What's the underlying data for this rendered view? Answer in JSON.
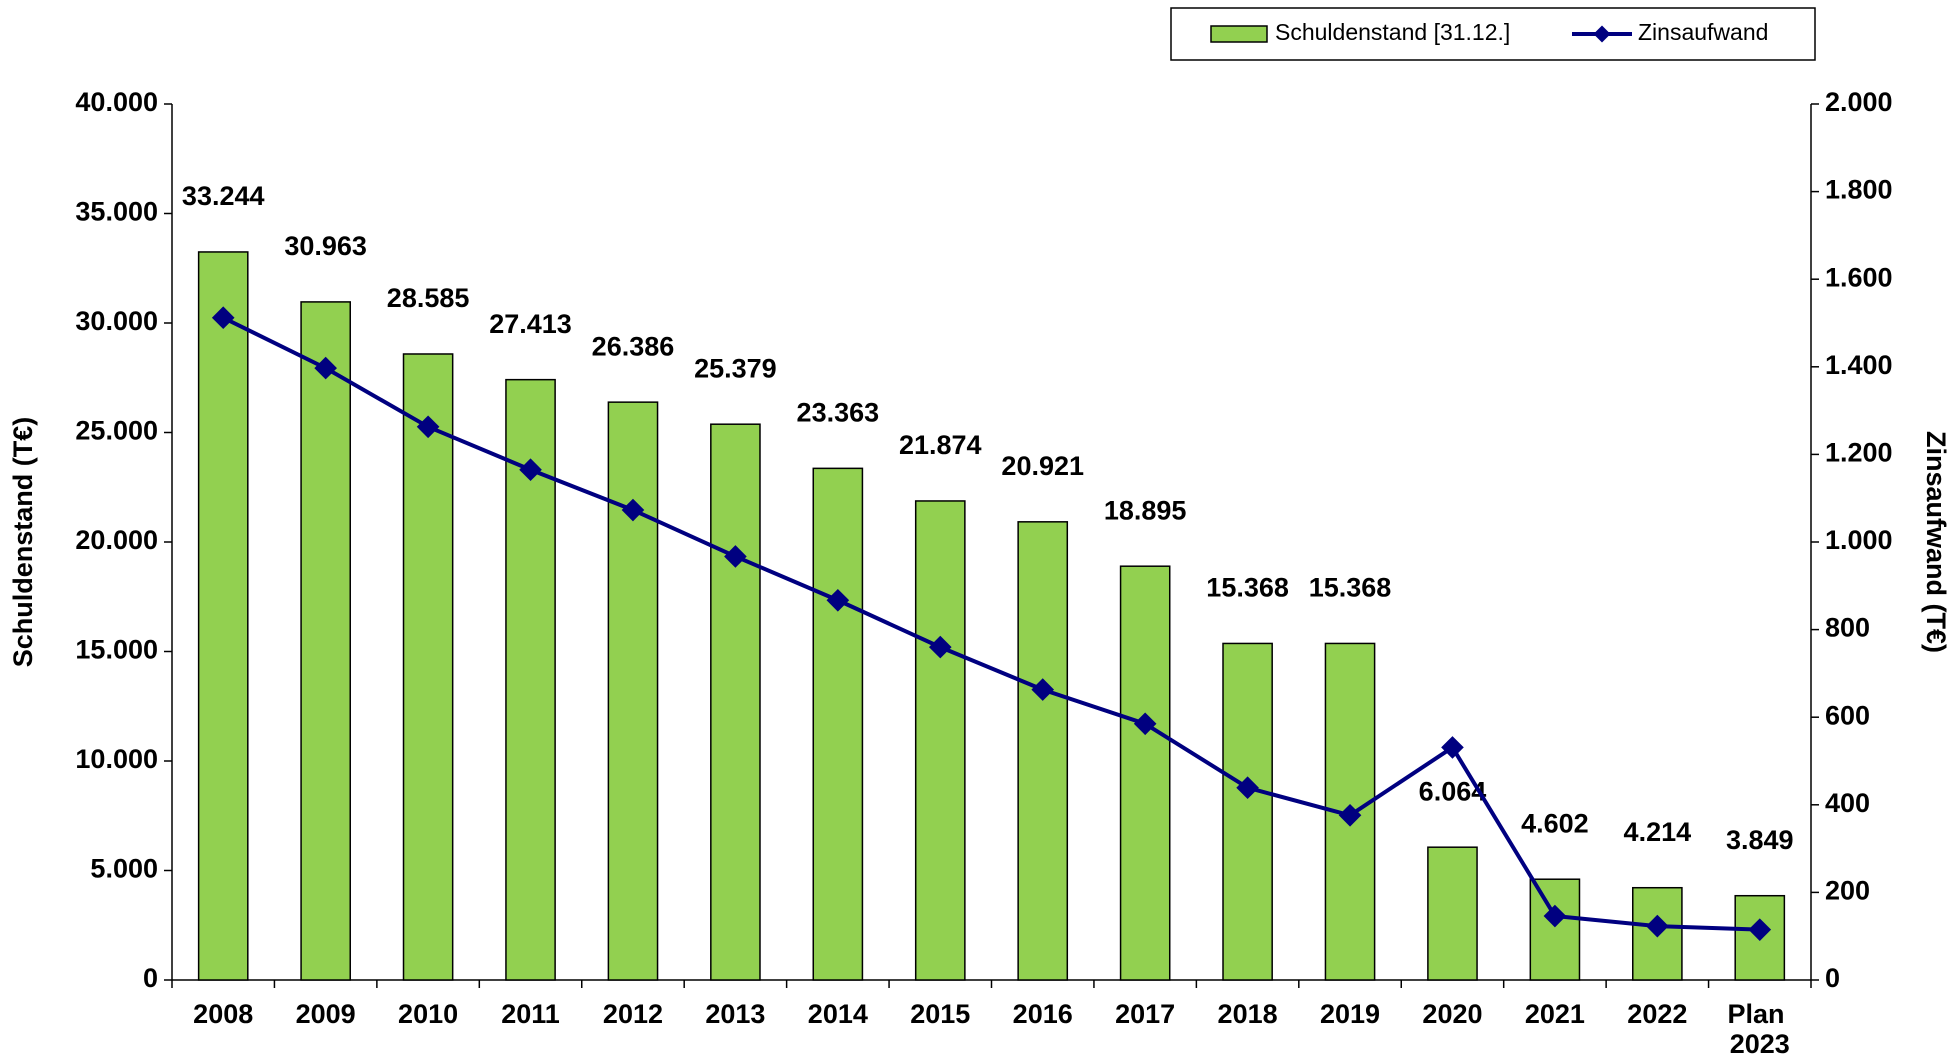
{
  "chart_data": {
    "type": "bar",
    "y_label": "Schuldenstand (T€)",
    "y2_label": "Zinsaufwand (T€)",
    "categories": [
      "2008",
      "2009",
      "2010",
      "2011",
      "2012",
      "2013",
      "2014",
      "2015",
      "2016",
      "2017",
      "2018",
      "2019",
      "2020",
      "2021",
      "2022",
      "Plan 2023"
    ],
    "series": [
      {
        "name": "Schuldenstand [31.12.]",
        "type": "bar",
        "color": "#92d050",
        "values": [
          33244,
          30963,
          28585,
          27413,
          26386,
          25379,
          23363,
          21874,
          20921,
          18895,
          15368,
          15368,
          6064,
          4602,
          4214,
          3849
        ],
        "value_labels": [
          "33.244",
          "30.963",
          "28.585",
          "27.413",
          "26.386",
          "25.379",
          "23.363",
          "21.874",
          "20.921",
          "18.895",
          "15.368",
          "15.368",
          "6.064",
          "4.602",
          "4.214",
          "3.849"
        ]
      },
      {
        "name": "Zinsaufwand",
        "type": "line",
        "color": "#000080",
        "axis": "y2",
        "values": [
          1512,
          1397,
          1263,
          1165,
          1073,
          967,
          867,
          760,
          663,
          585,
          439,
          376,
          531,
          146,
          123,
          115
        ]
      }
    ],
    "ylim": [
      0,
      40000
    ],
    "yticks": [
      0,
      {
        "value": 5000,
        "label": "5.000"
      },
      {
        "value": 10000,
        "label": "10.000"
      },
      {
        "value": 15000,
        "label": "15.000"
      },
      {
        "value": 20000,
        "label": "20.000"
      },
      {
        "value": 25000,
        "label": "25.000"
      },
      {
        "value": 30000,
        "label": "30.000"
      },
      {
        "value": 35000,
        "label": "35.000"
      },
      {
        "value": 40000,
        "label": "40.000"
      }
    ],
    "y2lim": [
      0,
      2000
    ],
    "y2ticks": [
      0,
      200,
      400,
      600,
      800,
      {
        "value": 1000,
        "label": "1.000"
      },
      {
        "value": 1200,
        "label": "1.200"
      },
      {
        "value": 1400,
        "label": "1.400"
      },
      {
        "value": 1600,
        "label": "1.600"
      },
      {
        "value": 1800,
        "label": "1.800"
      },
      {
        "value": 2000,
        "label": "2.000"
      }
    ],
    "legend": "top-right",
    "grid": false
  }
}
